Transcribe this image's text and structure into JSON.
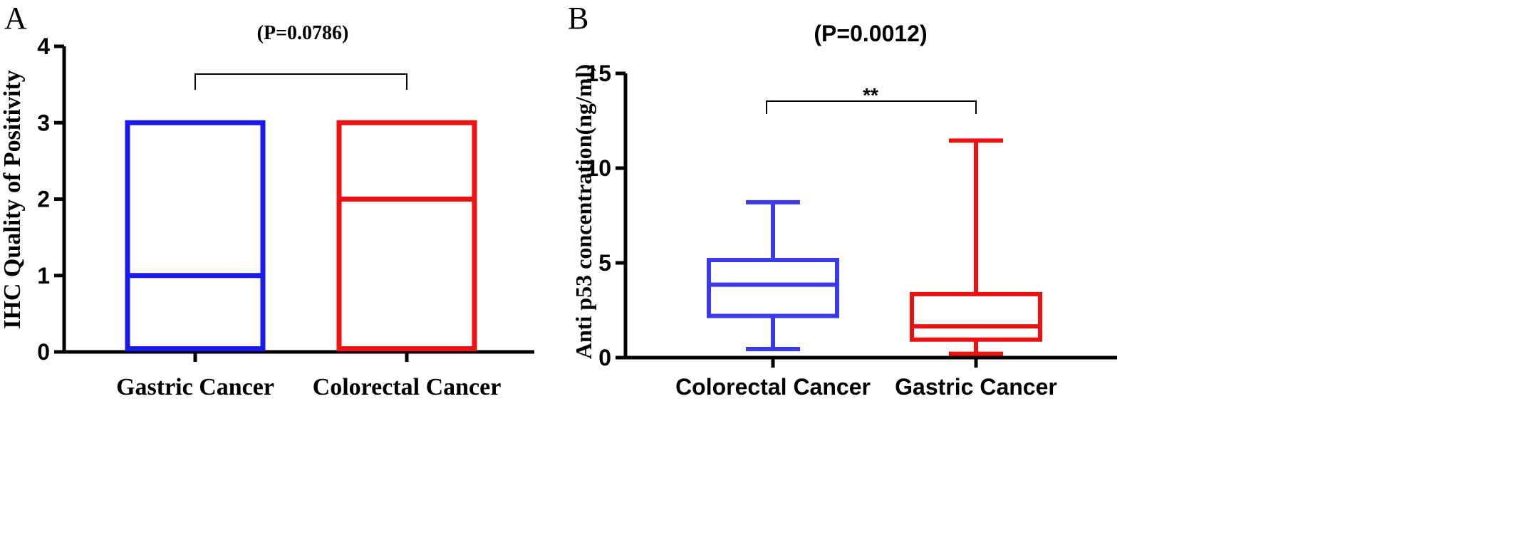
{
  "panel_a": {
    "letter": "A",
    "p_label": "(P=0.0786)"
  },
  "panel_b": {
    "letter": "B",
    "p_label": "(P=0.0012)",
    "significance": "**"
  },
  "chart_data": [
    {
      "type": "box",
      "title": "(P=0.0786)",
      "xlabel": "",
      "ylabel": "IHC Quality of Positivity",
      "ylim": [
        0,
        4
      ],
      "yticks": [
        0,
        1,
        2,
        3,
        4
      ],
      "categories": [
        "Gastric Cancer",
        "Colorectal Cancer"
      ],
      "series": [
        {
          "category": "Gastric Cancer",
          "color": "#1a1aee",
          "min": 0,
          "q1": 0,
          "median": 1,
          "q3": 3,
          "max": 3
        },
        {
          "category": "Colorectal Cancer",
          "color": "#ee1111",
          "min": 0,
          "q1": 0,
          "median": 2,
          "q3": 3,
          "max": 3
        }
      ],
      "grid": false
    },
    {
      "type": "box",
      "title": "(P=0.0012)",
      "xlabel": "",
      "ylabel": "Anti p53 concentration(ng/ml)",
      "ylim": [
        0,
        15
      ],
      "yticks": [
        0,
        5,
        10,
        15
      ],
      "categories": [
        "Colorectal Cancer",
        "Gastric Cancer"
      ],
      "series": [
        {
          "category": "Colorectal Cancer",
          "color": "#3a3ae8",
          "min": 0.45,
          "q1": 2.2,
          "median": 3.85,
          "q3": 5.15,
          "max": 8.2
        },
        {
          "category": "Gastric Cancer",
          "color": "#ee1111",
          "min": 0.2,
          "q1": 0.95,
          "median": 1.65,
          "q3": 3.35,
          "max": 11.45
        }
      ],
      "grid": false
    }
  ]
}
